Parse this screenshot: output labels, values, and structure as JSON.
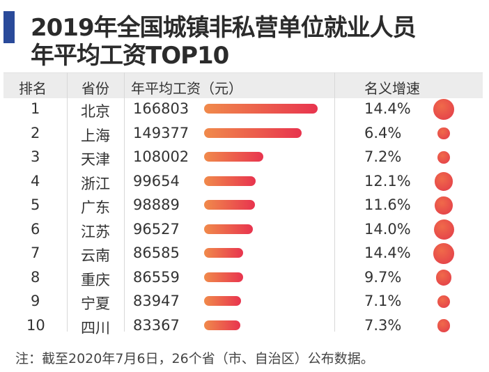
{
  "title_line1": "2019年全国城镇非私营单位就业人员",
  "title_line2": "年平均工资TOP10",
  "headers": {
    "rank": "排名",
    "province": "省份",
    "salary": "年平均工资（元）",
    "growth": "名义增速"
  },
  "note": "注：截至2020年7月6日，26个省（市、自治区）公布数据。",
  "colors": {
    "accent": "#2a4a9a",
    "bar_start": "#f08a4b",
    "bar_end": "#e8344e"
  },
  "chart_data": {
    "type": "table",
    "title": "2019年全国城镇非私营单位就业人员年平均工资TOP10",
    "columns": [
      "排名",
      "省份",
      "年平均工资（元）",
      "名义增速"
    ],
    "rows": [
      {
        "rank": "1",
        "province": "北京",
        "salary": 166803,
        "growth": "14.4%",
        "growth_value": 14.4
      },
      {
        "rank": "2",
        "province": "上海",
        "salary": 149377,
        "growth": "6.4%",
        "growth_value": 6.4
      },
      {
        "rank": "3",
        "province": "天津",
        "salary": 108002,
        "growth": "7.2%",
        "growth_value": 7.2
      },
      {
        "rank": "4",
        "province": "浙江",
        "salary": 99654,
        "growth": "12.1%",
        "growth_value": 12.1
      },
      {
        "rank": "5",
        "province": "广东",
        "salary": 98889,
        "growth": "11.6%",
        "growth_value": 11.6
      },
      {
        "rank": "6",
        "province": "江苏",
        "salary": 96527,
        "growth": "14.0%",
        "growth_value": 14.0
      },
      {
        "rank": "7",
        "province": "云南",
        "salary": 86585,
        "growth": "14.4%",
        "growth_value": 14.4
      },
      {
        "rank": "8",
        "province": "重庆",
        "salary": 86559,
        "growth": "9.7%",
        "growth_value": 9.7
      },
      {
        "rank": "9",
        "province": "宁夏",
        "salary": 83947,
        "growth": "7.1%",
        "growth_value": 7.1
      },
      {
        "rank": "10",
        "province": "四川",
        "salary": 83367,
        "growth": "7.3%",
        "growth_value": 7.3
      }
    ]
  }
}
